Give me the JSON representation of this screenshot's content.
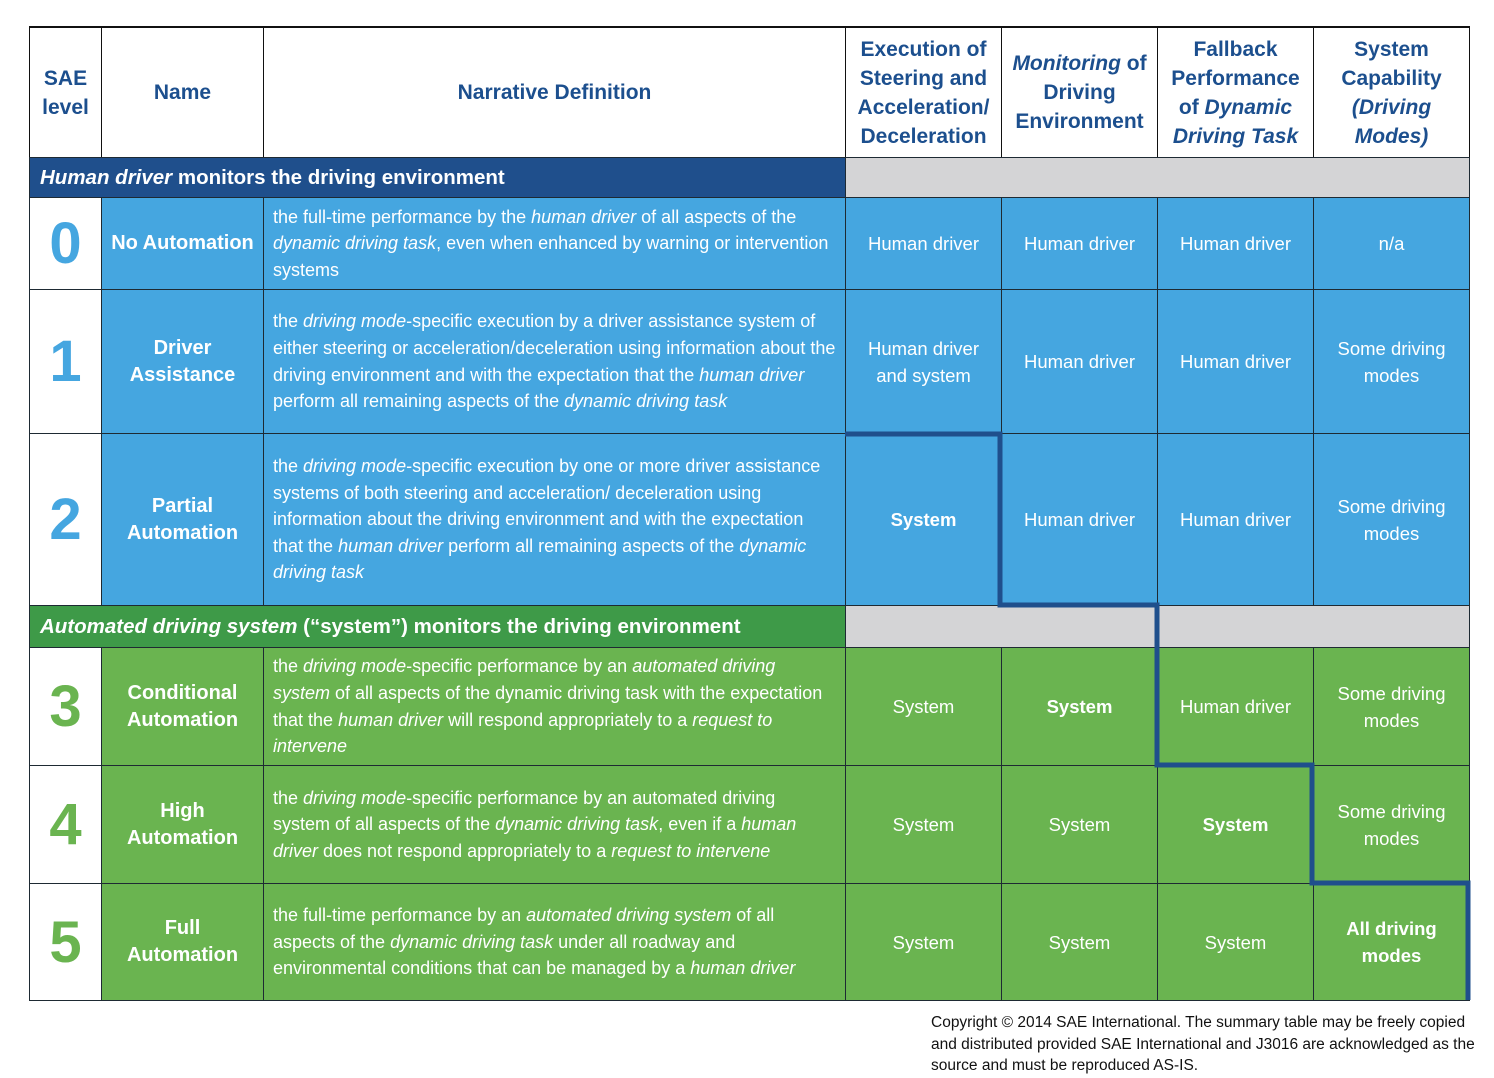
{
  "header": {
    "level": "SAE level",
    "name": "Name",
    "narrative": "Narrative Definition",
    "execution": "Execution of Steering and Acceleration/ Deceleration",
    "monitoring": [
      {
        "text": "Monitoring",
        "italic": true
      },
      {
        "text": " of Driving Environment"
      }
    ],
    "fallback": [
      {
        "text": "Fallback Performance of "
      },
      {
        "text": "Dynamic Driving Task",
        "italic": true
      }
    ],
    "capability": [
      {
        "text": "System Capability "
      },
      {
        "text": "(Driving Modes)",
        "italic": true
      }
    ]
  },
  "groups": [
    {
      "title": [
        {
          "text": "Human driver",
          "italic": true
        },
        {
          "text": " monitors the driving environment"
        }
      ],
      "title_color": "#1f4f8c",
      "color": "#45a6e0",
      "rows": [
        {
          "level": "0",
          "name": "No Automation",
          "narrative": [
            {
              "text": "the full-time performance by the "
            },
            {
              "text": "human driver",
              "italic": true
            },
            {
              "text": " of all aspects of the "
            },
            {
              "text": "dynamic driving task",
              "italic": true
            },
            {
              "text": ", even when enhanced by warning or intervention systems"
            }
          ],
          "execution": "Human driver",
          "monitoring": "Human driver",
          "fallback": "Human driver",
          "capability": "n/a"
        },
        {
          "level": "1",
          "name": "Driver Assistance",
          "narrative": [
            {
              "text": "the "
            },
            {
              "text": "driving mode",
              "italic": true
            },
            {
              "text": "-specific execution by a driver assistance system of either steering or acceleration/deceleration using information about the driving environment and with the expectation that the "
            },
            {
              "text": "human driver",
              "italic": true
            },
            {
              "text": " perform all remaining aspects of the "
            },
            {
              "text": "dynamic driving task",
              "italic": true
            }
          ],
          "execution": "Human driver and system",
          "monitoring": "Human driver",
          "fallback": "Human driver",
          "capability": "Some driving modes"
        },
        {
          "level": "2",
          "name": "Partial Automation",
          "narrative": [
            {
              "text": "the "
            },
            {
              "text": "driving mode",
              "italic": true
            },
            {
              "text": "-specific execution by one or more driver assistance systems of both steering and acceleration/ deceleration using information about the driving environment and with the expectation that the "
            },
            {
              "text": "human driver",
              "italic": true
            },
            {
              "text": " perform all remaining aspects of the "
            },
            {
              "text": "dynamic driving task",
              "italic": true
            }
          ],
          "execution": {
            "text": "System",
            "bold": true
          },
          "monitoring": "Human driver",
          "fallback": "Human driver",
          "capability": "Some driving modes"
        }
      ]
    },
    {
      "title": [
        {
          "text": "Automated driving system",
          "italic": true
        },
        {
          "text": " (“system”) monitors the driving environment"
        }
      ],
      "title_color": "#3e9a48",
      "color": "#6ab450",
      "rows": [
        {
          "level": "3",
          "name": "Conditional Automation",
          "narrative": [
            {
              "text": "the "
            },
            {
              "text": "driving mode",
              "italic": true
            },
            {
              "text": "-specific performance by an "
            },
            {
              "text": "automated driving system",
              "italic": true
            },
            {
              "text": " of all aspects of the dynamic driving task with the expectation that the "
            },
            {
              "text": "human driver",
              "italic": true
            },
            {
              "text": " will respond appropriately to a "
            },
            {
              "text": "request to intervene",
              "italic": true
            }
          ],
          "execution": "System",
          "monitoring": {
            "text": "System",
            "bold": true
          },
          "fallback": "Human driver",
          "capability": "Some driving modes"
        },
        {
          "level": "4",
          "name": "High Automation",
          "narrative": [
            {
              "text": "the "
            },
            {
              "text": "driving mode",
              "italic": true
            },
            {
              "text": "-specific performance by an automated driving system of all aspects of the "
            },
            {
              "text": "dynamic driving task",
              "italic": true
            },
            {
              "text": ", even if a "
            },
            {
              "text": "human driver",
              "italic": true
            },
            {
              "text": " does not respond appropriately to a "
            },
            {
              "text": "request to intervene",
              "italic": true
            }
          ],
          "execution": "System",
          "monitoring": "System",
          "fallback": {
            "text": "System",
            "bold": true
          },
          "capability": "Some driving modes"
        },
        {
          "level": "5",
          "name": "Full Automation",
          "narrative": [
            {
              "text": "the full-time performance by an "
            },
            {
              "text": "automated driving system",
              "italic": true
            },
            {
              "text": " of all aspects of the "
            },
            {
              "text": "dynamic driving task",
              "italic": true
            },
            {
              "text": " under all roadway and environmental conditions that can be managed by a "
            },
            {
              "text": "human driver",
              "italic": true
            }
          ],
          "execution": "System",
          "monitoring": "System",
          "fallback": "System",
          "capability": {
            "text": "All driving modes",
            "bold": true
          }
        }
      ]
    }
  ],
  "footer": "Copyright © 2014 SAE International.  The summary table may be freely copied and distributed provided SAE International and J3016 are acknowledged as the source and must be reproduced AS-IS."
}
